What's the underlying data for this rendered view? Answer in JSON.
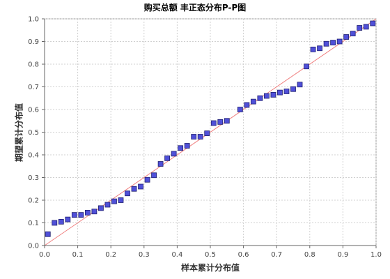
{
  "chart_data": {
    "type": "scatter",
    "title": "购买总额 丰正态分布P-P图",
    "xlabel": "样本累计分布值",
    "ylabel": "期望累计分布值",
    "xlim": [
      0.0,
      1.0
    ],
    "ylim": [
      0.0,
      1.0
    ],
    "xticks": [
      "0.0",
      "0.1",
      "0.2",
      "0.3",
      "0.4",
      "0.5",
      "0.6",
      "0.7",
      "0.8",
      "0.9",
      "1.0"
    ],
    "yticks": [
      "0.0",
      "0.1",
      "0.2",
      "0.3",
      "0.4",
      "0.5",
      "0.6",
      "0.7",
      "0.8",
      "0.9",
      "1.0"
    ],
    "grid": true,
    "reference_line": {
      "x": [
        0.0,
        1.0
      ],
      "y": [
        0.0,
        1.0
      ],
      "color": "#f08080"
    },
    "marker_color": "#5050d8",
    "series": [
      {
        "x": [
          0.01,
          0.03,
          0.05,
          0.07,
          0.09,
          0.11,
          0.13,
          0.15,
          0.17,
          0.19,
          0.21,
          0.23,
          0.25,
          0.27,
          0.29,
          0.31,
          0.33,
          0.35,
          0.37,
          0.39,
          0.41,
          0.43,
          0.45,
          0.47,
          0.49,
          0.51,
          0.53,
          0.55,
          0.59,
          0.61,
          0.63,
          0.65,
          0.67,
          0.69,
          0.71,
          0.73,
          0.75,
          0.77,
          0.79,
          0.81,
          0.83,
          0.85,
          0.87,
          0.89,
          0.91,
          0.93,
          0.95,
          0.97,
          0.99
        ],
        "y": [
          0.05,
          0.1,
          0.105,
          0.115,
          0.135,
          0.135,
          0.145,
          0.15,
          0.165,
          0.18,
          0.195,
          0.2,
          0.23,
          0.25,
          0.26,
          0.29,
          0.31,
          0.36,
          0.385,
          0.405,
          0.43,
          0.44,
          0.48,
          0.48,
          0.495,
          0.54,
          0.545,
          0.55,
          0.6,
          0.62,
          0.635,
          0.65,
          0.66,
          0.665,
          0.675,
          0.68,
          0.69,
          0.71,
          0.79,
          0.865,
          0.87,
          0.89,
          0.895,
          0.9,
          0.92,
          0.935,
          0.96,
          0.965,
          0.98
        ]
      }
    ]
  }
}
